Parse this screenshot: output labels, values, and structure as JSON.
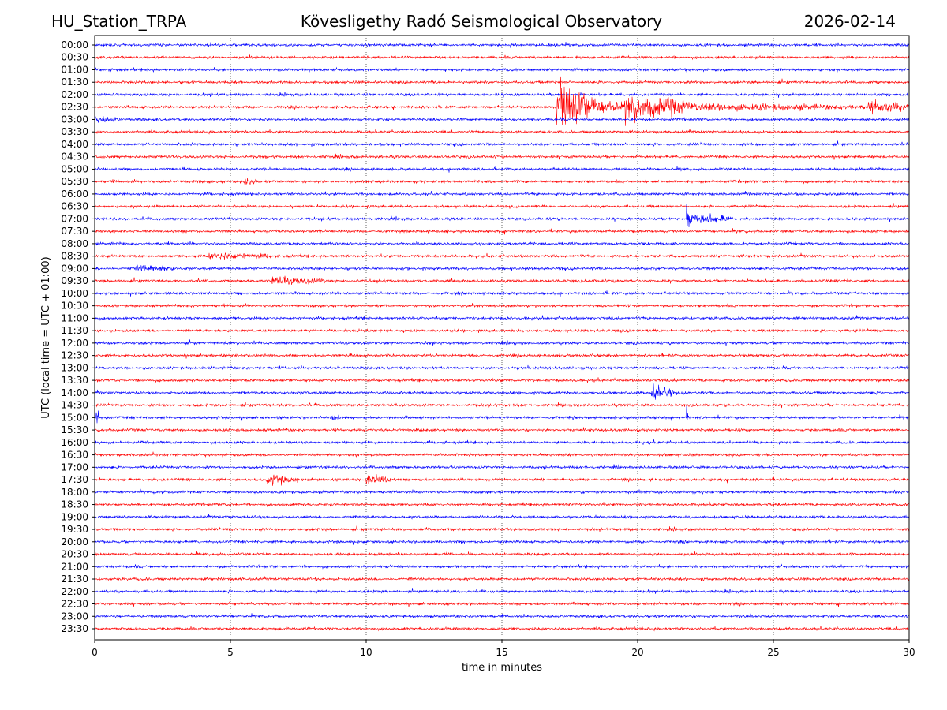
{
  "header": {
    "station": "HU_Station_TRPA",
    "observatory": "Kövesligethy Radó Seismological Observatory",
    "date": "2026-02-14"
  },
  "chart_data": {
    "type": "line",
    "subtype": "helicorder",
    "title": "Kövesligethy Radó Seismological Observatory",
    "xlabel": "time in minutes",
    "ylabel": "UTC (local time = UTC + 01:00)",
    "xlim": [
      0,
      30
    ],
    "x_ticks": [
      "0",
      "5",
      "10",
      "15",
      "20",
      "25",
      "30"
    ],
    "grid": "vertical dotted at x ticks",
    "trace_colors": [
      "#0000ff",
      "#ff0000"
    ],
    "rows": [
      "00:00",
      "00:30",
      "01:00",
      "01:30",
      "02:00",
      "02:30",
      "03:00",
      "03:30",
      "04:00",
      "04:30",
      "05:00",
      "05:30",
      "06:00",
      "06:30",
      "07:00",
      "07:30",
      "08:00",
      "08:30",
      "09:00",
      "09:30",
      "10:00",
      "10:30",
      "11:00",
      "11:30",
      "12:00",
      "12:30",
      "13:00",
      "13:30",
      "14:00",
      "14:30",
      "15:00",
      "15:30",
      "16:00",
      "16:30",
      "17:00",
      "17:30",
      "18:00",
      "18:30",
      "19:00",
      "19:30",
      "20:00",
      "20:30",
      "21:00",
      "21:30",
      "22:00",
      "22:30",
      "23:00",
      "23:30"
    ],
    "events": [
      {
        "row": "02:30",
        "start_min": 17.0,
        "end_min": 18.2,
        "relative_amplitude": 1.6
      },
      {
        "row": "02:30",
        "start_min": 18.2,
        "end_min": 19.5,
        "relative_amplitude": 0.5
      },
      {
        "row": "02:30",
        "start_min": 19.5,
        "end_min": 21.8,
        "relative_amplitude": 0.8
      },
      {
        "row": "02:30",
        "start_min": 21.8,
        "end_min": 28.5,
        "relative_amplitude": 0.25
      },
      {
        "row": "02:30",
        "start_min": 28.5,
        "end_min": 30.0,
        "relative_amplitude": 0.4
      },
      {
        "row": "03:00",
        "start_min": 0.0,
        "end_min": 1.0,
        "relative_amplitude": 0.2
      },
      {
        "row": "05:30",
        "start_min": 5.5,
        "end_min": 6.0,
        "relative_amplitude": 0.3
      },
      {
        "row": "07:00",
        "start_min": 21.8,
        "end_min": 22.0,
        "relative_amplitude": 1.0
      },
      {
        "row": "07:00",
        "start_min": 22.0,
        "end_min": 23.5,
        "relative_amplitude": 0.3
      },
      {
        "row": "08:30",
        "start_min": 4.2,
        "end_min": 6.5,
        "relative_amplitude": 0.25
      },
      {
        "row": "09:00",
        "start_min": 1.5,
        "end_min": 3.0,
        "relative_amplitude": 0.25
      },
      {
        "row": "09:30",
        "start_min": 6.5,
        "end_min": 8.5,
        "relative_amplitude": 0.25
      },
      {
        "row": "14:00",
        "start_min": 20.5,
        "end_min": 21.3,
        "relative_amplitude": 0.5
      },
      {
        "row": "15:00",
        "start_min": 0.05,
        "end_min": 0.15,
        "relative_amplitude": 0.6
      },
      {
        "row": "15:00",
        "start_min": 8.7,
        "end_min": 9.0,
        "relative_amplitude": 0.3
      },
      {
        "row": "15:00",
        "start_min": 21.8,
        "end_min": 21.9,
        "relative_amplitude": 0.6
      },
      {
        "row": "17:30",
        "start_min": 6.3,
        "end_min": 7.5,
        "relative_amplitude": 0.3
      },
      {
        "row": "17:30",
        "start_min": 10.0,
        "end_min": 11.0,
        "relative_amplitude": 0.3
      }
    ]
  }
}
